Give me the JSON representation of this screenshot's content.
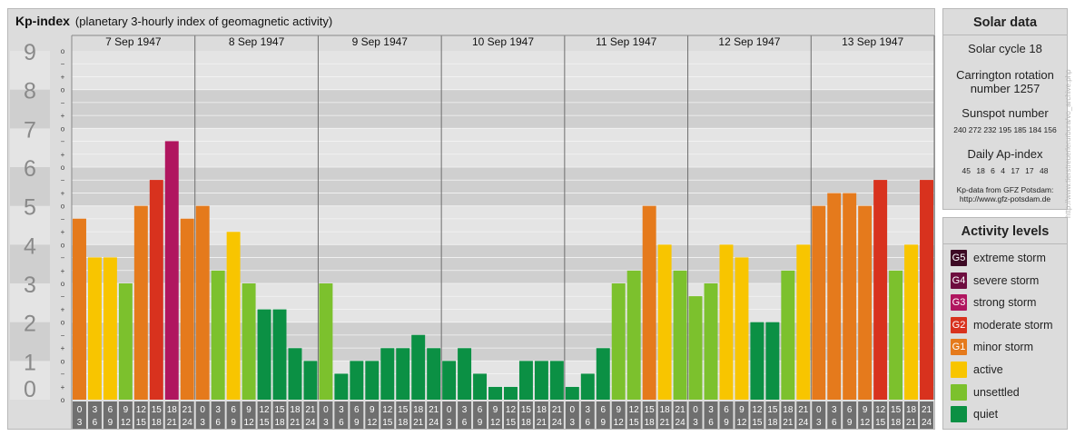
{
  "header": {
    "title": "Kp-index",
    "subtitle": "(planetary 3-hourly index of geomagnetic activity)"
  },
  "chart_data": {
    "type": "bar",
    "ylim": [
      0,
      9
    ],
    "y_ticks": [
      "0",
      "1",
      "2",
      "3",
      "4",
      "5",
      "6",
      "7",
      "8",
      "9"
    ],
    "sub_ticks": [
      "o",
      "+",
      "−"
    ],
    "days": [
      "7 Sep 1947",
      "8 Sep 1947",
      "9 Sep 1947",
      "10 Sep 1947",
      "11 Sep 1947",
      "12 Sep 1947",
      "13 Sep 1947"
    ],
    "interval_start": [
      "0",
      "3",
      "6",
      "9",
      "12",
      "15",
      "18",
      "21"
    ],
    "interval_end": [
      "3",
      "6",
      "9",
      "12",
      "15",
      "18",
      "21",
      "24"
    ],
    "values": [
      [
        4.67,
        3.67,
        3.67,
        3.0,
        5.0,
        5.67,
        6.67,
        4.67
      ],
      [
        5.0,
        3.33,
        4.33,
        3.0,
        2.33,
        2.33,
        1.33,
        1.0
      ],
      [
        3.0,
        0.67,
        1.0,
        1.0,
        1.33,
        1.33,
        1.67,
        1.33
      ],
      [
        1.0,
        1.33,
        0.67,
        0.33,
        0.33,
        1.0,
        1.0,
        1.0
      ],
      [
        0.33,
        0.67,
        1.33,
        3.0,
        3.33,
        5.0,
        4.0,
        3.33
      ],
      [
        2.67,
        3.0,
        4.0,
        3.67,
        2.0,
        2.0,
        3.33,
        4.0
      ],
      [
        5.0,
        5.33,
        5.33,
        5.0,
        5.67,
        3.33,
        4.0,
        5.67
      ]
    ],
    "grid": true
  },
  "solar": {
    "title": "Solar data",
    "cycle": "Solar cycle 18",
    "carrington_1": "Carrington rotation",
    "carrington_2": "number 1257",
    "sunspot_title": "Sunspot number",
    "sunspot_values": "240 272 232 195 185 184 156",
    "ap_title": "Daily Ap-index",
    "ap_values": "45  18  6  4  17  17  48",
    "source_1": "Kp-data from GFZ Potsdam:",
    "source_2": "http://www.gfz-potsdam.de"
  },
  "legend": {
    "title": "Activity levels",
    "items": [
      {
        "code": "G5",
        "label": "extreme storm",
        "color": "#3d0a24"
      },
      {
        "code": "G4",
        "label": "severe storm",
        "color": "#6e0d3f"
      },
      {
        "code": "G3",
        "label": "strong storm",
        "color": "#b0165f"
      },
      {
        "code": "G2",
        "label": "moderate storm",
        "color": "#d8321e"
      },
      {
        "code": "G1",
        "label": "minor storm",
        "color": "#e57a1c"
      },
      {
        "code": "",
        "label": "active",
        "color": "#f8c500"
      },
      {
        "code": "",
        "label": "unsettled",
        "color": "#7cc12d"
      },
      {
        "code": "",
        "label": "quiet",
        "color": "#0b9044"
      }
    ]
  },
  "watermark": "http://www.tierstreuerlerurbura/vo_archive.php"
}
